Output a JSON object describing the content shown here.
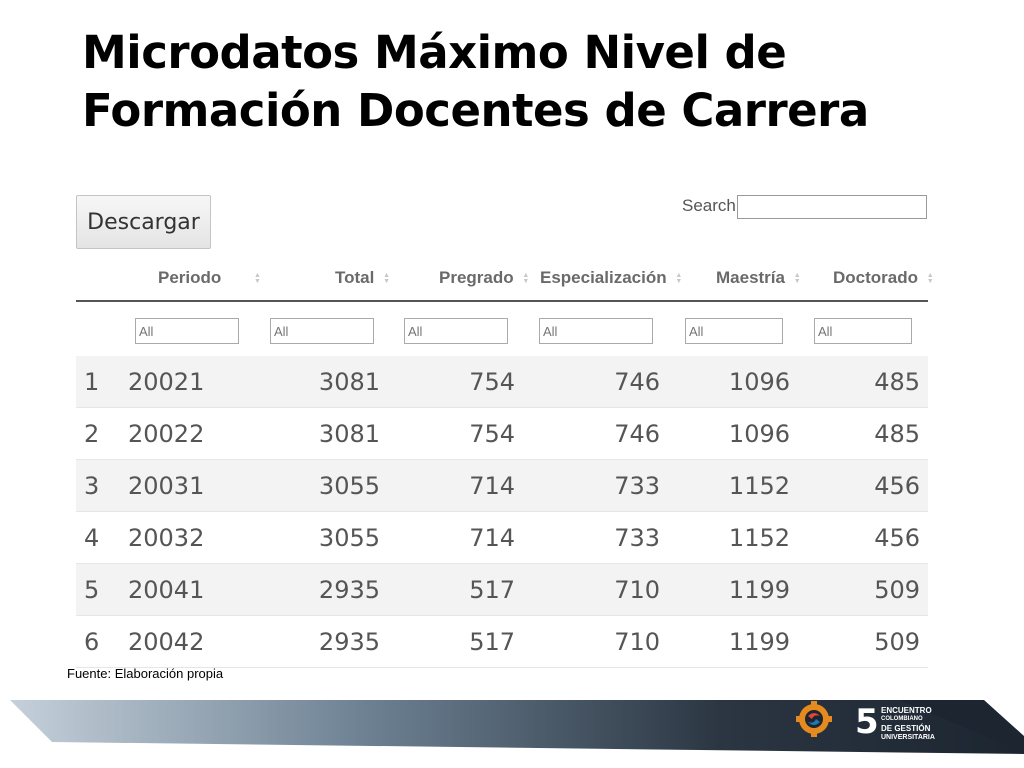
{
  "slide": {
    "title_line1": "Microdatos Máximo Nivel de",
    "title_line2": "Formación Docentes de Carrera",
    "source": "Fuente: Elaboración propia"
  },
  "toolbar": {
    "download_label": "Descargar",
    "search_label": "Search:",
    "search_value": ""
  },
  "table": {
    "columns": [
      "Periodo",
      "Total",
      "Pregrado",
      "Especialización",
      "Maestría",
      "Doctorado"
    ],
    "filter_placeholder": "All",
    "rows": [
      {
        "index": "1",
        "periodo": "20021",
        "total": "3081",
        "pregrado": "754",
        "especializacion": "746",
        "maestria": "1096",
        "doctorado": "485"
      },
      {
        "index": "2",
        "periodo": "20022",
        "total": "3081",
        "pregrado": "754",
        "especializacion": "746",
        "maestria": "1096",
        "doctorado": "485"
      },
      {
        "index": "3",
        "periodo": "20031",
        "total": "3055",
        "pregrado": "714",
        "especializacion": "733",
        "maestria": "1152",
        "doctorado": "456"
      },
      {
        "index": "4",
        "periodo": "20032",
        "total": "3055",
        "pregrado": "714",
        "especializacion": "733",
        "maestria": "1152",
        "doctorado": "456"
      },
      {
        "index": "5",
        "periodo": "20041",
        "total": "2935",
        "pregrado": "517",
        "especializacion": "710",
        "maestria": "1199",
        "doctorado": "509"
      },
      {
        "index": "6",
        "periodo": "20042",
        "total": "2935",
        "pregrado": "517",
        "especializacion": "710",
        "maestria": "1199",
        "doctorado": "509"
      }
    ]
  },
  "logo": {
    "number": "5",
    "line1": "ENCUENTRO",
    "line2": "COLOMBIANO",
    "line3": "DE GESTIÓN",
    "line4": "UNIVERSITARIA"
  },
  "colors": {
    "band_dark": "#1c2530",
    "band_light": "#b9c6d2",
    "logo_orange": "#e58a1f",
    "logo_blue": "#1f77b4"
  }
}
